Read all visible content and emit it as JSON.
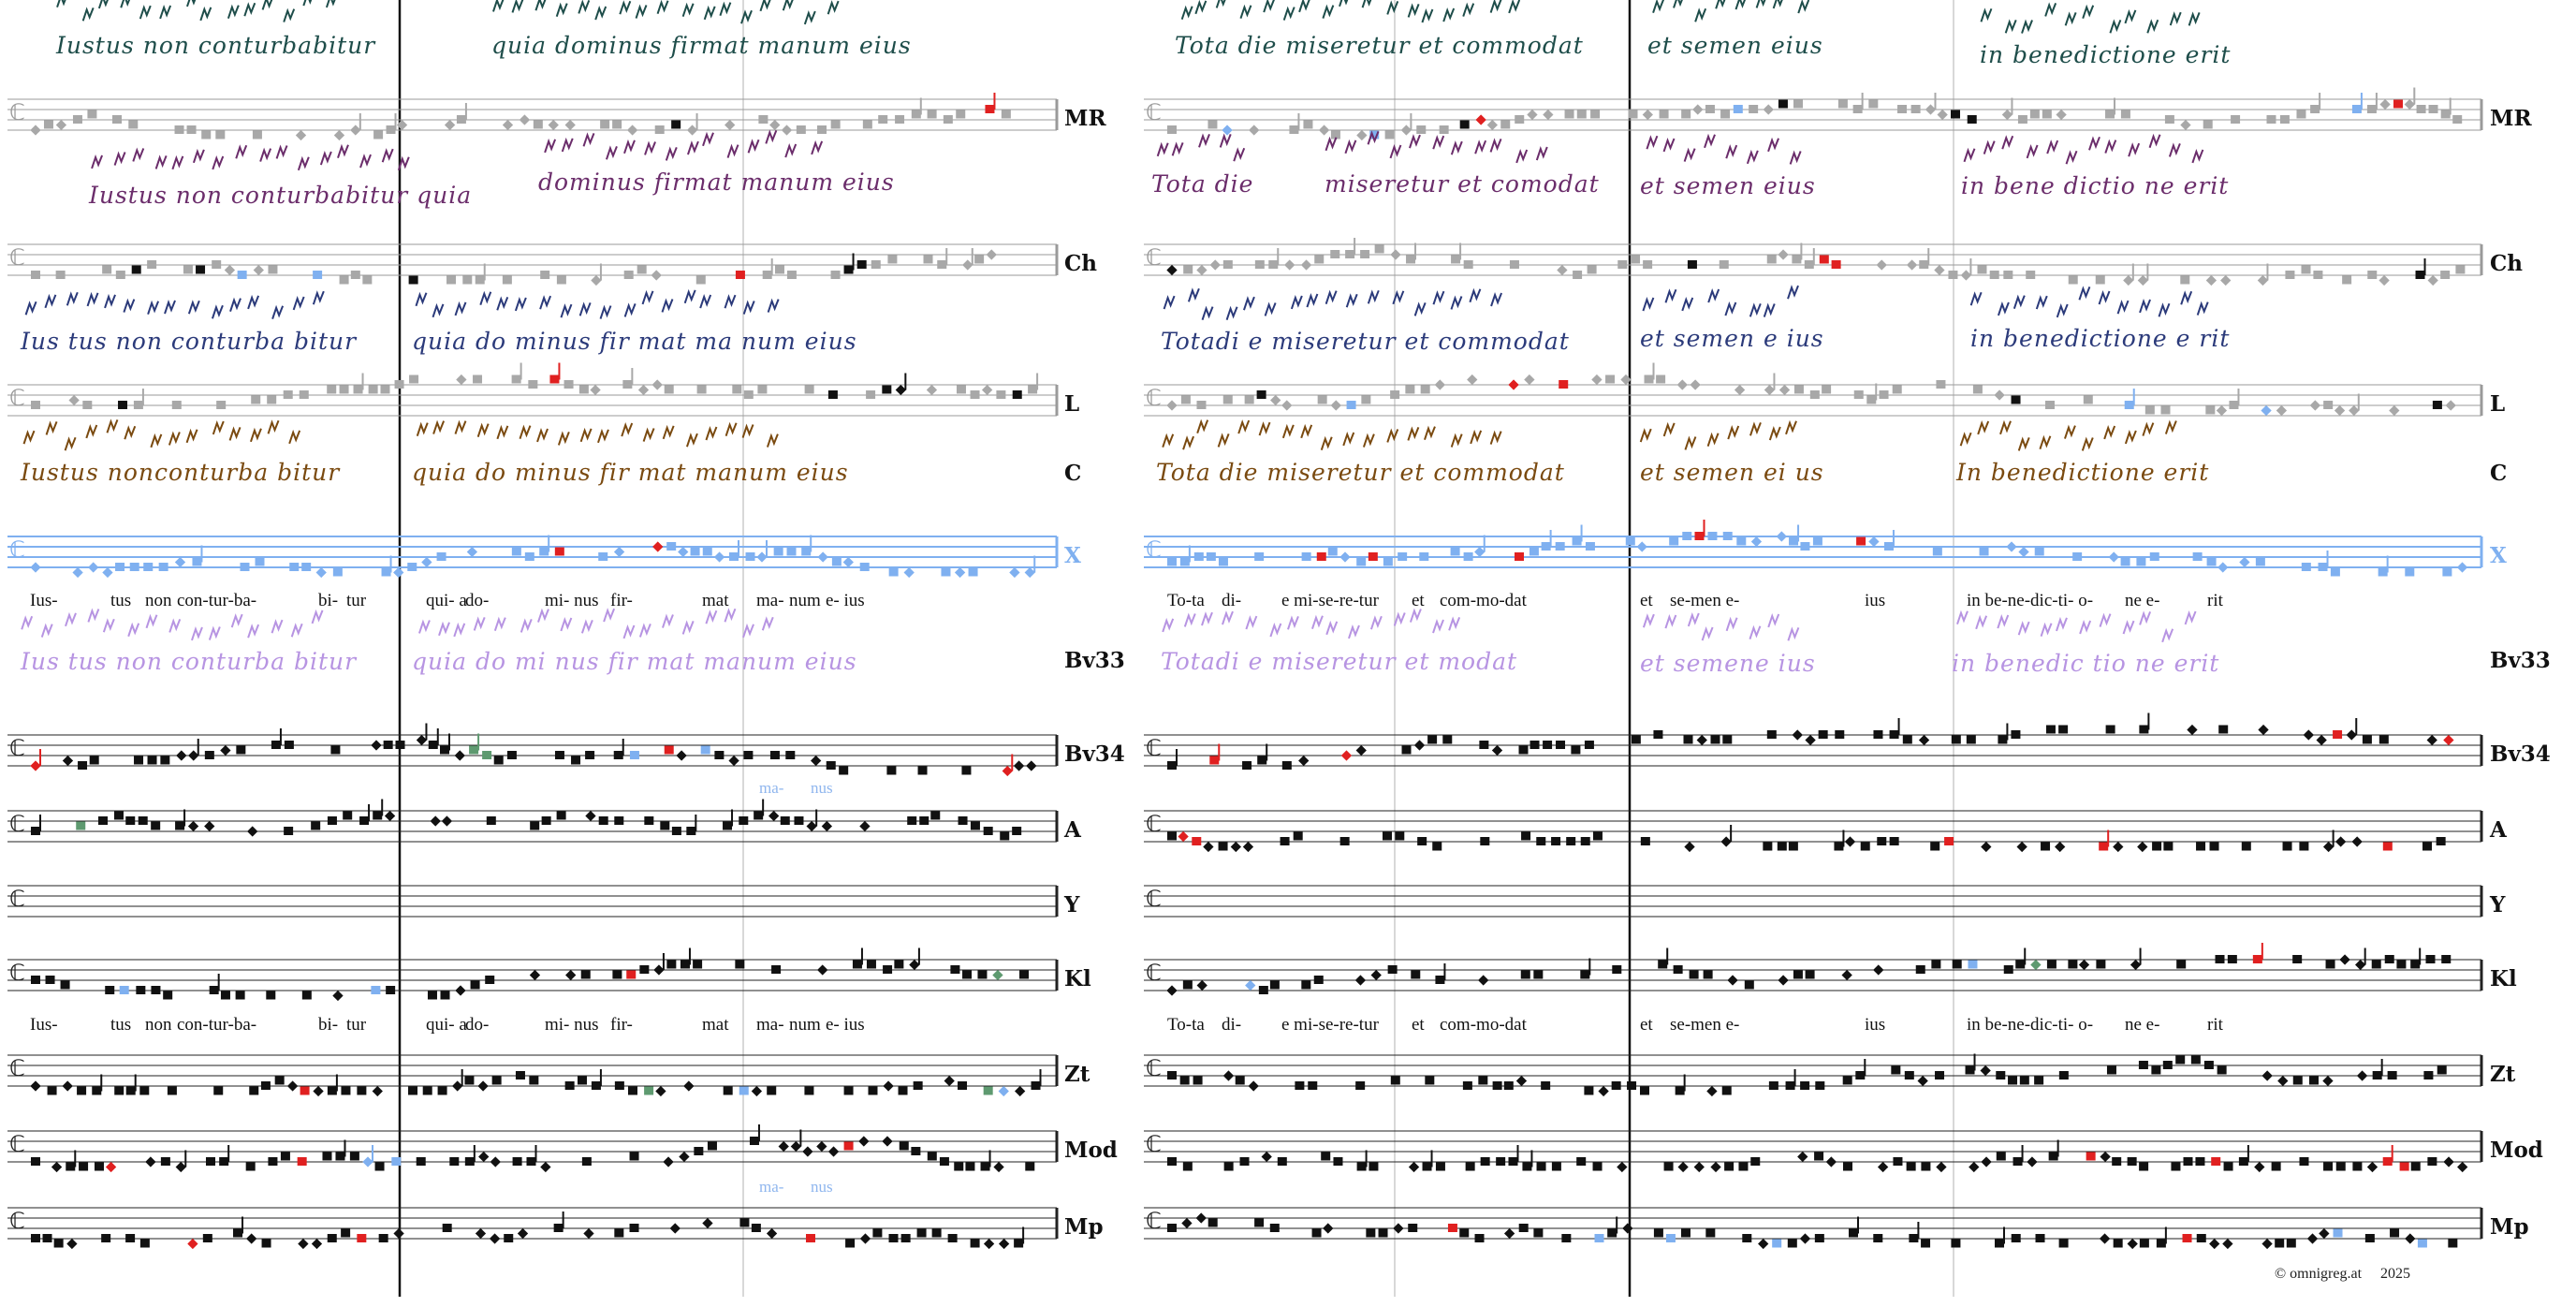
{
  "colors": {
    "MR": "#1e4d4a",
    "Ch": "#6b2d6b",
    "L": "#2b3a7a",
    "C": "#7a4a10",
    "Bv33": "#b794e2",
    "X": "#7fb0f0",
    "print": "#111111",
    "gray": "#a8a8a8",
    "red": "#e02020",
    "green": "#5e9a70"
  },
  "rows": [
    {
      "id": "MR",
      "label": "MR"
    },
    {
      "id": "Ch",
      "label": "Ch"
    },
    {
      "id": "L",
      "label": "L"
    },
    {
      "id": "C",
      "label": "C"
    },
    {
      "id": "X",
      "label": "X"
    },
    {
      "id": "Bv33",
      "label": "Bv33"
    },
    {
      "id": "Bv34",
      "label": "Bv34"
    },
    {
      "id": "A",
      "label": "A"
    },
    {
      "id": "Y",
      "label": "Y"
    },
    {
      "id": "Kl",
      "label": "Kl"
    },
    {
      "id": "Zt",
      "label": "Zt"
    },
    {
      "id": "Mod",
      "label": "Mod"
    },
    {
      "id": "Mp",
      "label": "Mp"
    }
  ],
  "manuscript_text": {
    "MR": [
      "Iustus non conturbabitur",
      "quia dominus firmat manum eius",
      "Tota die miseretur et commodat",
      "et semen eius",
      "in benedictione erit"
    ],
    "Ch": [
      "Iustus non conturbabitur quia",
      "dominus firmat manum eius",
      "Tota die",
      "miseretur et comodat",
      "et semen eius",
      "in bene dictio ne erit"
    ],
    "L": [
      "Ius tus non conturba bitur",
      "quia do minus fir mat ma num eius",
      "Totadi e miseretur et commodat",
      "et semen e ius",
      "in benedictione e rit"
    ],
    "C": [
      "Iustus nonconturba bitur",
      "quia do minus fir mat manum eius",
      "Tota die miseretur et commodat",
      "et semen ei us",
      "In benedictione erit"
    ],
    "Bv33": [
      "Ius tus non conturba bitur",
      "quia do mi nus fir mat manum eius",
      "Totadi e miseretur et modat",
      "et semene ius",
      "in benedic tio ne erit"
    ]
  },
  "lyrics_left": [
    "Ius-",
    "tus",
    "non",
    "con-tur-ba-",
    "bi-",
    "tur",
    "qui- a",
    "do-",
    "mi- nus",
    "fir-",
    "mat",
    "ma-",
    "num",
    "e- ius"
  ],
  "lyrics_right": [
    "To-ta",
    "di-",
    "e mi-se-re-tur",
    "et",
    "com-mo-dat",
    "et",
    "se-men e-",
    "ius",
    "in be-ne-dic-ti- o-",
    "ne e-",
    "rit"
  ],
  "variant_notes": {
    "A": [
      "ma-",
      "nus"
    ],
    "Mp": [
      "ma-",
      "nus"
    ]
  },
  "footer": {
    "copyright": "©  omnigreg.at",
    "year": "2025"
  }
}
